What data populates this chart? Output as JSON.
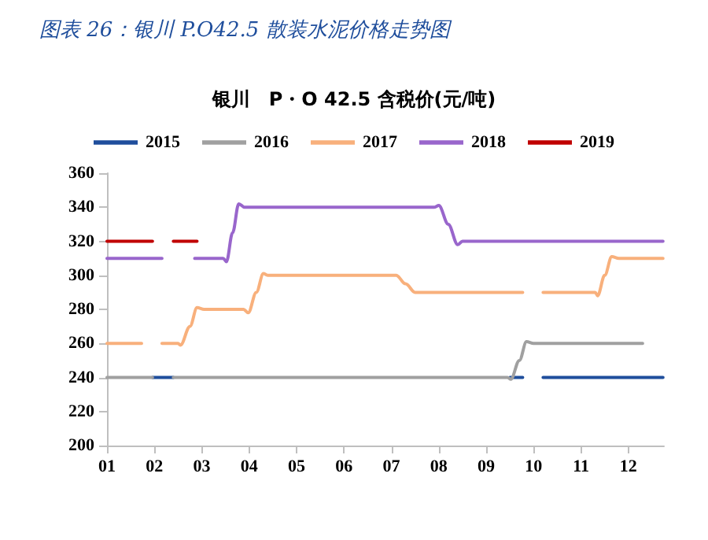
{
  "chart_data": {
    "type": "line",
    "title": "图表 26：银川 P.O42.5 散装水泥价格走势图",
    "subtitle": "银川　P・O 42.5 含税价(元/吨)",
    "xlim": [
      1,
      12.75
    ],
    "xticks": [
      {
        "value": 1,
        "label": "01"
      },
      {
        "value": 2,
        "label": "02"
      },
      {
        "value": 3,
        "label": "03"
      },
      {
        "value": 4,
        "label": "04"
      },
      {
        "value": 5,
        "label": "05"
      },
      {
        "value": 6,
        "label": "06"
      },
      {
        "value": 7,
        "label": "07"
      },
      {
        "value": 8,
        "label": "08"
      },
      {
        "value": 9,
        "label": "09"
      },
      {
        "value": 10,
        "label": "10"
      },
      {
        "value": 11,
        "label": "11"
      },
      {
        "value": 12,
        "label": "12"
      }
    ],
    "ylim": [
      200,
      360
    ],
    "yticks": [
      200,
      220,
      240,
      260,
      280,
      300,
      320,
      340,
      360
    ],
    "grid": false,
    "legend": "top",
    "marker": "none",
    "line_style": "solid",
    "series": [
      {
        "name": "2015",
        "color": "#1f4e9c",
        "x": [
          1.96,
          2.4,
          2.41,
          9.5,
          9.77,
          9.78,
          10.2,
          12.73
        ],
        "values": [
          240,
          240,
          null,
          240,
          240,
          null,
          240,
          240
        ]
      },
      {
        "name": "2016",
        "color": "#a0a0a0",
        "x": [
          1,
          1.96,
          1.97,
          2.4,
          9.45,
          9.52,
          9.7,
          9.85,
          10.0,
          12.3
        ],
        "values": [
          240,
          240,
          null,
          240,
          240,
          239,
          250,
          261,
          260,
          260
        ]
      },
      {
        "name": "2017",
        "color": "#f8b07c",
        "x": [
          1,
          1.73,
          1.74,
          2.16,
          2.5,
          2.55,
          2.75,
          2.9,
          3.05,
          3.88,
          3.98,
          4.15,
          4.3,
          4.4,
          7.1,
          7.3,
          7.5,
          9.77,
          9.78,
          10.2,
          11.3,
          11.35,
          11.5,
          11.65,
          11.8,
          12.73
        ],
        "values": [
          260,
          260,
          null,
          260,
          260,
          259,
          270,
          281,
          280,
          280,
          278,
          290,
          301,
          300,
          300,
          295,
          290,
          290,
          null,
          290,
          290,
          288,
          300,
          311,
          310,
          310
        ]
      },
      {
        "name": "2018",
        "color": "#9966cc",
        "x": [
          1,
          2.16,
          2.17,
          2.85,
          3.45,
          3.52,
          3.65,
          3.78,
          3.9,
          7.9,
          8.0,
          8.2,
          8.4,
          8.5,
          12.73
        ],
        "values": [
          310,
          310,
          null,
          310,
          310,
          308,
          325,
          342,
          340,
          340,
          341,
          330,
          318,
          320,
          320
        ]
      },
      {
        "name": "2019",
        "color": "#c00000",
        "x": [
          1,
          1.96,
          1.97,
          2.4,
          2.9
        ],
        "values": [
          320,
          320,
          null,
          320,
          320
        ]
      }
    ]
  }
}
